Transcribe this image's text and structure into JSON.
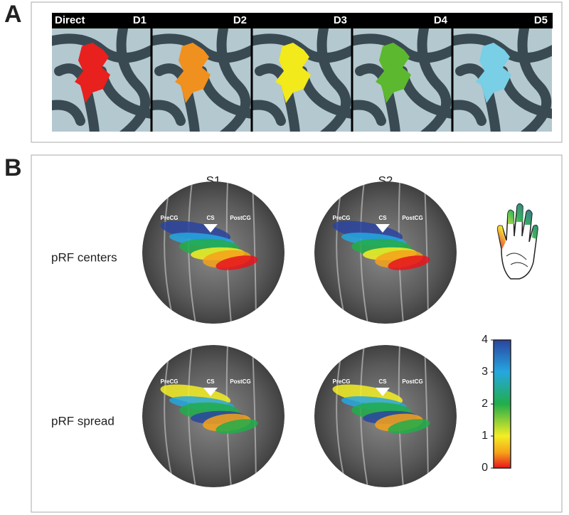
{
  "panel_a": {
    "label": "A",
    "header": "Direct",
    "digits": [
      "D1",
      "D2",
      "D3",
      "D4",
      "D5"
    ]
  },
  "panel_b": {
    "label": "B",
    "columns": [
      "S1",
      "S2"
    ],
    "rows": [
      "pRF centers",
      "pRF spread"
    ],
    "landmarks": [
      "PreCG",
      "CS",
      "PostCG"
    ],
    "colorbar": {
      "lim": [
        0,
        4
      ],
      "ticks": [
        0,
        1,
        2,
        3,
        4
      ]
    }
  }
}
